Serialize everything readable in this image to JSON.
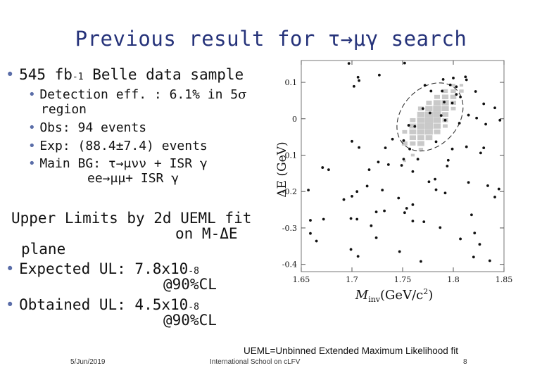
{
  "slide": {
    "title": "Previous result for τ→μγ search",
    "bullet_main": "545 fb",
    "bullet_main_sup": "-1",
    "bullet_main_rest": " Belle data sample",
    "sub": [
      {
        "pre": "Detection eff. : 6.1% in 5",
        "greek": "σ"
      },
      {
        "text": "region"
      },
      {
        "text": "Obs: 94 events"
      },
      {
        "text": "Exp: (88.4±7.4) events"
      },
      {
        "text": "Main BG: τ→μνν + ISR γ"
      },
      {
        "text": "ee→μμ+ ISR γ"
      }
    ],
    "ul_heading_1": "Upper Limits by 2d UEML fit",
    "ul_heading_2": "on M-ΔE",
    "ul_heading_3": "plane",
    "expected": "Expected UL: 7.8x10",
    "expected_sup": "-8",
    "expected_cl": "@90%CL",
    "obtained": "Obtained UL: 4.5x10",
    "obtained_sup": "-8",
    "obtained_cl": "@90%CL",
    "footnote": "UEML=Unbinned Extended Maximum Likelihood fit",
    "date": "5/Jun/2019",
    "school": "International School on cLFV",
    "page": "8"
  },
  "plot": {
    "ylabel": "ΔE (GeV)",
    "xlabel": "M",
    "xlabel_sub": "inv",
    "xlabel_unit": "(GeV/c",
    "xlabel_unit_sup": "2",
    "xlabel_unit_end": ")",
    "xticks": [
      "1.65",
      "1.7",
      "1.75",
      "1.8",
      "1.85"
    ],
    "yticks": [
      "0.1",
      "0",
      "-0.1",
      "-0.2",
      "-0.3",
      "-0.4"
    ]
  },
  "chart_data": {
    "type": "scatter",
    "xlabel": "Minv (GeV/c2)",
    "ylabel": "ΔE (GeV)",
    "xlim": [
      1.65,
      1.85
    ],
    "ylim": [
      -0.42,
      0.16
    ],
    "xticks": [
      1.65,
      1.7,
      1.75,
      1.8,
      1.85
    ],
    "yticks": [
      0.1,
      0,
      -0.1,
      -0.2,
      -0.3,
      -0.4
    ],
    "signal_region_ellipse": {
      "center": [
        1.777,
        0.005
      ],
      "semi_axes": [
        0.028,
        0.19
      ],
      "tilt_deg": 42
    },
    "signal_pdf_boxes": [
      {
        "x": 1.752,
        "y": -0.068,
        "w": 0.7
      },
      {
        "x": 1.76,
        "y": -0.068,
        "w": 0.7
      },
      {
        "x": 1.768,
        "y": -0.068,
        "w": 0.85
      },
      {
        "x": 1.76,
        "y": -0.052,
        "w": 0.8
      },
      {
        "x": 1.768,
        "y": -0.052,
        "w": 0.85
      },
      {
        "x": 1.776,
        "y": -0.052,
        "w": 0.85
      },
      {
        "x": 1.752,
        "y": -0.036,
        "w": 0.6
      },
      {
        "x": 1.76,
        "y": -0.036,
        "w": 0.85
      },
      {
        "x": 1.768,
        "y": -0.036,
        "w": 0.95
      },
      {
        "x": 1.776,
        "y": -0.036,
        "w": 0.95
      },
      {
        "x": 1.784,
        "y": -0.036,
        "w": 0.8
      },
      {
        "x": 1.76,
        "y": -0.02,
        "w": 0.85
      },
      {
        "x": 1.768,
        "y": -0.02,
        "w": 0.95
      },
      {
        "x": 1.776,
        "y": -0.02,
        "w": 1.0
      },
      {
        "x": 1.784,
        "y": -0.02,
        "w": 0.9
      },
      {
        "x": 1.792,
        "y": -0.02,
        "w": 0.6
      },
      {
        "x": 1.76,
        "y": -0.004,
        "w": 0.7
      },
      {
        "x": 1.768,
        "y": -0.004,
        "w": 0.95
      },
      {
        "x": 1.776,
        "y": -0.004,
        "w": 1.0
      },
      {
        "x": 1.784,
        "y": -0.004,
        "w": 0.95
      },
      {
        "x": 1.792,
        "y": -0.004,
        "w": 0.7
      },
      {
        "x": 1.768,
        "y": 0.012,
        "w": 0.9
      },
      {
        "x": 1.776,
        "y": 0.012,
        "w": 1.0
      },
      {
        "x": 1.784,
        "y": 0.012,
        "w": 1.0
      },
      {
        "x": 1.792,
        "y": 0.012,
        "w": 0.8
      },
      {
        "x": 1.768,
        "y": 0.028,
        "w": 0.7
      },
      {
        "x": 1.776,
        "y": 0.028,
        "w": 0.9
      },
      {
        "x": 1.784,
        "y": 0.028,
        "w": 1.0
      },
      {
        "x": 1.792,
        "y": 0.028,
        "w": 0.9
      },
      {
        "x": 1.8,
        "y": 0.028,
        "w": 0.6
      },
      {
        "x": 1.776,
        "y": 0.044,
        "w": 0.7
      },
      {
        "x": 1.784,
        "y": 0.044,
        "w": 0.9
      },
      {
        "x": 1.792,
        "y": 0.044,
        "w": 0.9
      },
      {
        "x": 1.8,
        "y": 0.044,
        "w": 0.7
      },
      {
        "x": 1.784,
        "y": 0.06,
        "w": 0.7
      },
      {
        "x": 1.792,
        "y": 0.06,
        "w": 0.8
      },
      {
        "x": 1.8,
        "y": 0.06,
        "w": 0.75
      },
      {
        "x": 1.792,
        "y": 0.076,
        "w": 0.65
      },
      {
        "x": 1.8,
        "y": 0.076,
        "w": 0.65
      },
      {
        "x": 1.808,
        "y": 0.076,
        "w": 0.55
      },
      {
        "x": 1.8,
        "y": 0.092,
        "w": 0.5
      },
      {
        "x": 1.808,
        "y": 0.092,
        "w": 0.45
      },
      {
        "x": 1.768,
        "y": -0.084,
        "w": 0.55
      },
      {
        "x": 1.76,
        "y": -0.1,
        "w": 0.45
      },
      {
        "x": 1.752,
        "y": -0.116,
        "w": 0.35
      }
    ],
    "points": [
      [
        1.697,
        0.152
      ],
      [
        1.752,
        0.153
      ],
      [
        1.706,
        0.114
      ],
      [
        1.707,
        0.105
      ],
      [
        1.727,
        0.12
      ],
      [
        1.702,
        0.089
      ],
      [
        1.812,
        0.115
      ],
      [
        1.813,
        0.107
      ],
      [
        1.8,
        0.112
      ],
      [
        1.79,
        0.108
      ],
      [
        1.797,
        0.093
      ],
      [
        1.803,
        0.088
      ],
      [
        1.772,
        0.092
      ],
      [
        1.778,
        0.076
      ],
      [
        1.789,
        0.076
      ],
      [
        1.822,
        0.075
      ],
      [
        1.803,
        0.067
      ],
      [
        1.807,
        0.06
      ],
      [
        1.791,
        0.046
      ],
      [
        1.799,
        0.043
      ],
      [
        1.83,
        0.041
      ],
      [
        1.841,
        0.03
      ],
      [
        1.77,
        0.028
      ],
      [
        1.777,
        0.016
      ],
      [
        1.788,
        0.009
      ],
      [
        1.792,
        -0.004
      ],
      [
        1.815,
        0.01
      ],
      [
        1.823,
        0.002
      ],
      [
        1.806,
        -0.012
      ],
      [
        1.832,
        -0.015
      ],
      [
        1.846,
        -0.004
      ],
      [
        1.756,
        -0.018
      ],
      [
        1.762,
        -0.021
      ],
      [
        1.74,
        -0.056
      ],
      [
        1.733,
        -0.08
      ],
      [
        1.751,
        -0.06
      ],
      [
        1.757,
        -0.083
      ],
      [
        1.751,
        -0.111
      ],
      [
        1.726,
        -0.119
      ],
      [
        1.707,
        -0.079
      ],
      [
        1.783,
        -0.063
      ],
      [
        1.765,
        -0.111
      ],
      [
        1.749,
        -0.128
      ],
      [
        1.76,
        -0.145
      ],
      [
        1.736,
        -0.126
      ],
      [
        1.799,
        -0.083
      ],
      [
        1.813,
        -0.077
      ],
      [
        1.83,
        -0.08
      ],
      [
        1.827,
        -0.094
      ],
      [
        1.795,
        -0.114
      ],
      [
        1.794,
        -0.13
      ],
      [
        1.7,
        -0.062
      ],
      [
        1.671,
        -0.134
      ],
      [
        1.677,
        -0.14
      ],
      [
        1.717,
        -0.14
      ],
      [
        1.715,
        -0.185
      ],
      [
        1.705,
        -0.2
      ],
      [
        1.657,
        -0.196
      ],
      [
        1.7,
        -0.213
      ],
      [
        1.692,
        -0.222
      ],
      [
        1.776,
        -0.173
      ],
      [
        1.783,
        -0.195
      ],
      [
        1.792,
        -0.204
      ],
      [
        1.782,
        -0.166
      ],
      [
        1.815,
        -0.175
      ],
      [
        1.834,
        -0.184
      ],
      [
        1.845,
        -0.193
      ],
      [
        1.841,
        -0.215
      ],
      [
        1.73,
        -0.196
      ],
      [
        1.746,
        -0.218
      ],
      [
        1.754,
        -0.246
      ],
      [
        1.76,
        -0.236
      ],
      [
        1.732,
        -0.253
      ],
      [
        1.724,
        -0.256
      ],
      [
        1.705,
        -0.276
      ],
      [
        1.699,
        -0.274
      ],
      [
        1.672,
        -0.276
      ],
      [
        1.659,
        -0.279
      ],
      [
        1.719,
        -0.294
      ],
      [
        1.724,
        -0.327
      ],
      [
        1.659,
        -0.315
      ],
      [
        1.665,
        -0.336
      ],
      [
        1.76,
        -0.281
      ],
      [
        1.771,
        -0.283
      ],
      [
        1.787,
        -0.299
      ],
      [
        1.818,
        -0.264
      ],
      [
        1.821,
        -0.314
      ],
      [
        1.826,
        -0.345
      ],
      [
        1.82,
        -0.38
      ],
      [
        1.836,
        -0.39
      ],
      [
        1.699,
        -0.359
      ],
      [
        1.706,
        -0.378
      ],
      [
        1.747,
        -0.365
      ],
      [
        1.768,
        -0.392
      ],
      [
        1.752,
        -0.258
      ],
      [
        1.807,
        -0.33
      ]
    ]
  }
}
